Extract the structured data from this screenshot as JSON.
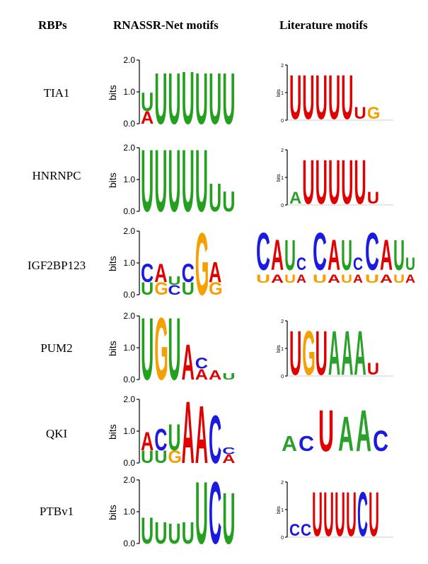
{
  "headers": {
    "rbps": "RBPs",
    "rnassr": "RNASSR-Net motifs",
    "literature": "Literature motifs"
  },
  "axis": {
    "ylabel": "bits",
    "ticks": [
      "0.0",
      "1.0",
      "2.0"
    ],
    "lit_ylabel": "bits"
  },
  "colors": {
    "A": "#e00000",
    "C": "#1a1ae0",
    "G": "#f5a000",
    "U": "#23a01e",
    "lit_U": "#e00000",
    "lit_A": "#2ca02c",
    "lit_C": "#1a1ae0",
    "lit_G": "#f5a000"
  },
  "rows": [
    {
      "rbp": "TIA1",
      "rnassr_motif": [
        {
          "top": "U",
          "h": 1.0,
          "sub": "A"
        },
        {
          "top": "U",
          "h": 1.65
        },
        {
          "top": "U",
          "h": 1.65
        },
        {
          "top": "U",
          "h": 1.7
        },
        {
          "top": "U",
          "h": 1.65
        },
        {
          "top": "U",
          "h": 1.65
        },
        {
          "top": "U",
          "h": 1.65
        }
      ],
      "lit_ticks": [
        "0",
        "1",
        "2"
      ],
      "lit_motif": [
        "U",
        "U",
        "U",
        "U",
        "U",
        "u",
        "g"
      ]
    },
    {
      "rbp": "HNRNPC",
      "rnassr_motif": [
        {
          "top": "U",
          "h": 2.0
        },
        {
          "top": "U",
          "h": 2.0
        },
        {
          "top": "U",
          "h": 2.0
        },
        {
          "top": "U",
          "h": 2.0
        },
        {
          "top": "U",
          "h": 2.0
        },
        {
          "top": "U",
          "h": 0.9
        },
        {
          "top": "U",
          "h": 0.65
        }
      ],
      "lit_ticks": [
        "0",
        "1",
        "2"
      ],
      "lit_motif": [
        "a",
        "U",
        "U",
        "U",
        "U",
        "U",
        "u"
      ]
    },
    {
      "rbp": "IGF2BP123",
      "rnassr_motif": [
        {
          "top": "C",
          "h": 1.0,
          "sub": "U"
        },
        {
          "top": "A",
          "h": 1.0,
          "sub": "G"
        },
        {
          "top": "U",
          "h": 0.6,
          "sub": "C"
        },
        {
          "top": "C",
          "h": 1.0,
          "sub": "U"
        },
        {
          "top": "G",
          "h": 2.0
        },
        {
          "top": "A",
          "h": 1.05,
          "sub": "G"
        },
        {
          "top": "",
          "h": 0.1
        }
      ],
      "lit_motifs": [
        [
          "C",
          "A",
          "U",
          "c"
        ],
        [
          "C",
          "A",
          "U",
          "c"
        ],
        [
          "C",
          "A",
          "U",
          "U"
        ]
      ]
    },
    {
      "rbp": "PUM2",
      "rnassr_motif": [
        {
          "top": "U",
          "h": 2.0
        },
        {
          "top": "G",
          "h": 2.0
        },
        {
          "top": "U",
          "h": 2.0
        },
        {
          "top": "A",
          "h": 1.15
        },
        {
          "top": "C",
          "h": 0.7,
          "sub": "A"
        },
        {
          "top": "A",
          "h": 0.3
        },
        {
          "top": "U",
          "h": 0.2
        }
      ],
      "lit_ticks": [
        "0",
        "1",
        "2"
      ],
      "lit_motif": [
        "U",
        "G",
        "U",
        "A",
        "A",
        "A",
        "u"
      ]
    },
    {
      "rbp": "QKI",
      "rnassr_motif": [
        {
          "top": "A",
          "h": 1.0,
          "sub": "U"
        },
        {
          "top": "C",
          "h": 1.1,
          "sub": "U"
        },
        {
          "top": "U",
          "h": 1.25,
          "sub": "G"
        },
        {
          "top": "A",
          "h": 2.0
        },
        {
          "top": "A",
          "h": 1.85
        },
        {
          "top": "C",
          "h": 1.55
        },
        {
          "top": "C",
          "h": 0.5,
          "sub": "A"
        }
      ],
      "lit_motif": [
        "A",
        "C",
        "U",
        "A",
        "A",
        "C"
      ]
    },
    {
      "rbp": "PTBv1",
      "rnassr_motif": [
        {
          "top": "U",
          "h": 0.85
        },
        {
          "top": "U",
          "h": 0.7
        },
        {
          "top": "U",
          "h": 0.65
        },
        {
          "top": "U",
          "h": 0.7
        },
        {
          "top": "U",
          "h": 2.0
        },
        {
          "top": "C",
          "h": 2.0
        },
        {
          "top": "U",
          "h": 1.65
        }
      ],
      "lit_ticks": [
        "0",
        "1",
        "2"
      ],
      "lit_motif": [
        "c",
        "c",
        "U",
        "U",
        "U",
        "U",
        "C",
        "U"
      ]
    }
  ]
}
